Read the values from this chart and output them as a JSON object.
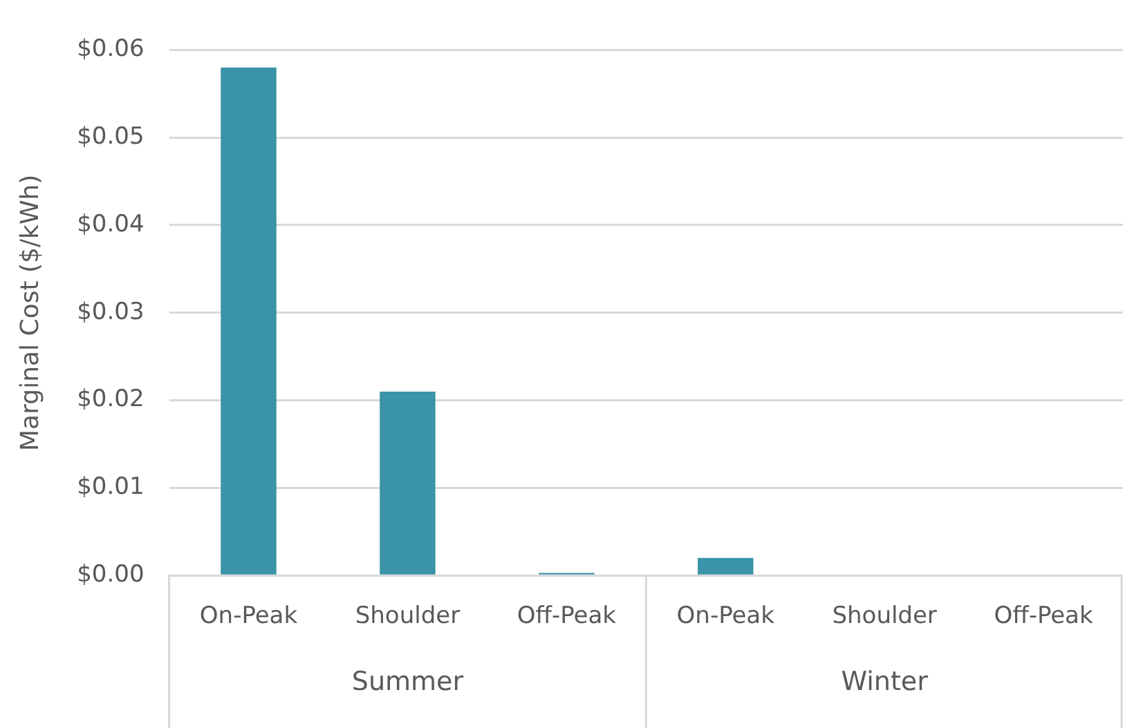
{
  "chart_data": {
    "type": "bar",
    "ylabel": "Marginal Cost ($/kWh)",
    "categories": [
      "On-Peak",
      "Shoulder",
      "Off-Peak",
      "On-Peak",
      "Shoulder",
      "Off-Peak"
    ],
    "values": [
      0.058,
      0.021,
      0.0003,
      0.002,
      0,
      0
    ],
    "color": "#3a93a8",
    "annotations": [
      "Summer",
      "Winter"
    ],
    "ylim": [
      0,
      0.06
    ],
    "yticks": [
      {
        "value": 0,
        "label": "$0.00"
      },
      {
        "value": 0.01,
        "label": "$0.01"
      },
      {
        "value": 0.02,
        "label": "$0.02"
      },
      {
        "value": 0.03,
        "label": "$0.03"
      },
      {
        "value": 0.04,
        "label": "$0.04"
      },
      {
        "value": 0.05,
        "label": "$0.05"
      },
      {
        "value": 0.06,
        "label": "$0.06"
      }
    ],
    "grid": "y",
    "legend": false
  }
}
